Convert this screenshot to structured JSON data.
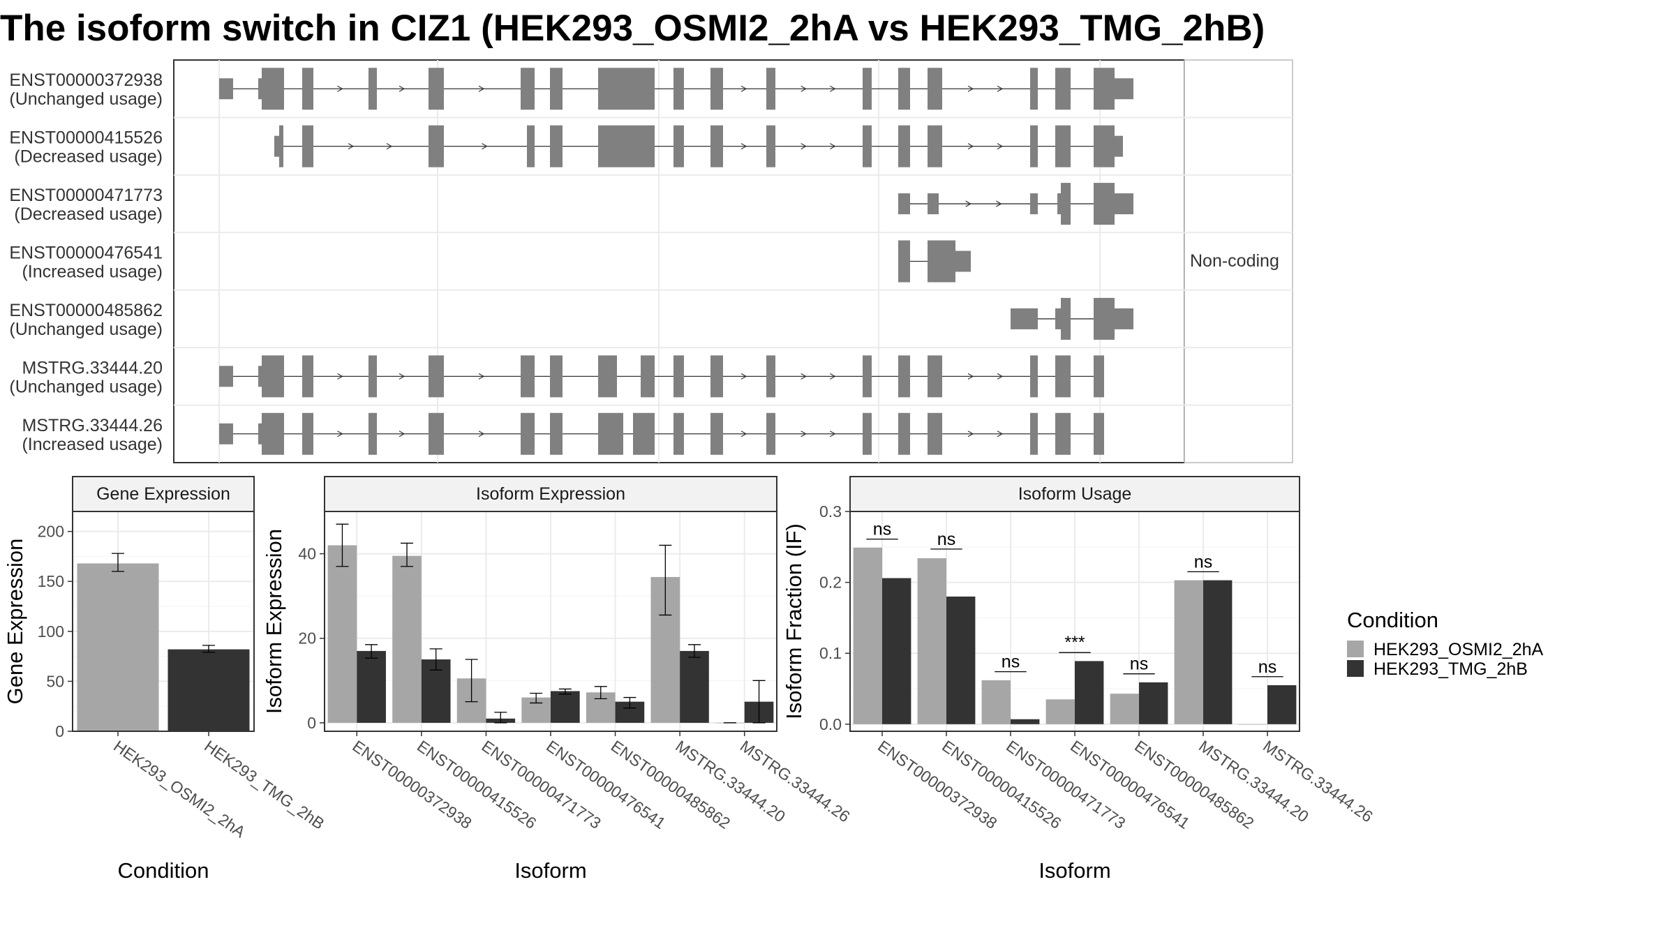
{
  "chart_data": [
    {
      "type": "structure",
      "title": "The isoform switch in CIZ1 (HEK293_OSMI2_2hA vs HEK293_TMG_2hB)",
      "facet_label": "Non-coding",
      "feature_color": "#808080",
      "transcripts": [
        {
          "id": "ENST00000372938",
          "usage": "(Unchanged usage)",
          "coding": true
        },
        {
          "id": "ENST00000415526",
          "usage": "(Decreased usage)",
          "coding": true
        },
        {
          "id": "ENST00000471773",
          "usage": "(Decreased usage)",
          "coding": true
        },
        {
          "id": "ENST00000476541",
          "usage": "(Increased usage)",
          "coding": false
        },
        {
          "id": "ENST00000485862",
          "usage": "(Unchanged usage)",
          "coding": false
        },
        {
          "id": "MSTRG.33444.20",
          "usage": "(Unchanged usage)",
          "coding": true
        },
        {
          "id": "MSTRG.33444.26",
          "usage": "(Increased usage)",
          "coding": true
        }
      ]
    },
    {
      "type": "bar",
      "title": "Gene Expression",
      "xlabel": "Condition",
      "ylabel": "Gene Expression",
      "ylim": [
        0,
        220
      ],
      "yticks": [
        0,
        50,
        100,
        150,
        200
      ],
      "categories": [
        "HEK293_OSMI2_2hA",
        "HEK293_TMG_2hB"
      ],
      "values": [
        168,
        82
      ],
      "errors": [
        [
          160,
          178
        ],
        [
          79,
          86
        ]
      ],
      "colors": [
        "#a6a6a6",
        "#333333"
      ]
    },
    {
      "type": "bar",
      "title": "Isoform Expression",
      "xlabel": "Isoform",
      "ylabel": "Isoform Expression",
      "ylim": [
        -2,
        50
      ],
      "yticks": [
        0,
        20,
        40
      ],
      "categories": [
        "ENST00000372938",
        "ENST00000415526",
        "ENST00000471773",
        "ENST00000476541",
        "ENST00000485862",
        "MSTRG.33444.20",
        "MSTRG.33444.26"
      ],
      "series": [
        {
          "name": "HEK293_OSMI2_2hA",
          "values": [
            42,
            39.5,
            10.5,
            6,
            7.2,
            34.5,
            0
          ],
          "errors": [
            [
              37,
              47
            ],
            [
              37,
              42.5
            ],
            [
              5,
              15
            ],
            [
              4.7,
              7
            ],
            [
              5.7,
              8.6
            ],
            [
              25.5,
              42
            ],
            [
              0,
              0
            ]
          ],
          "color": "#a6a6a6"
        },
        {
          "name": "HEK293_TMG_2hB",
          "values": [
            17,
            15,
            1,
            7.5,
            5,
            17,
            5
          ],
          "errors": [
            [
              15.3,
              18.5
            ],
            [
              12.5,
              17.5
            ],
            [
              0,
              2.5
            ],
            [
              6.8,
              8
            ],
            [
              3.5,
              6
            ],
            [
              15.5,
              18.5
            ],
            [
              0,
              10
            ]
          ],
          "color": "#333333"
        }
      ]
    },
    {
      "type": "bar",
      "title": "Isoform Usage",
      "xlabel": "Isoform",
      "ylabel": "Isoform Fraction (IF)",
      "ylim": [
        -0.01,
        0.3
      ],
      "yticks": [
        "0.0",
        "0.1",
        "0.2",
        "0.3"
      ],
      "categories": [
        "ENST00000372938",
        "ENST00000415526",
        "ENST00000471773",
        "ENST00000476541",
        "ENST00000485862",
        "MSTRG.33444.20",
        "MSTRG.33444.26"
      ],
      "series": [
        {
          "name": "HEK293_OSMI2_2hA",
          "values": [
            0.249,
            0.234,
            0.062,
            0.035,
            0.043,
            0.203,
            0
          ],
          "color": "#a6a6a6"
        },
        {
          "name": "HEK293_TMG_2hB",
          "values": [
            0.206,
            0.18,
            0.007,
            0.089,
            0.059,
            0.203,
            0.055
          ],
          "color": "#333333"
        }
      ],
      "significance": [
        "ns",
        "ns",
        "ns",
        "***",
        "ns",
        "ns",
        "ns"
      ],
      "significance_line_y": [
        0.261,
        0.247,
        0.074,
        0.101,
        0.071,
        0.215,
        0.067
      ]
    }
  ],
  "legend": {
    "title": "Condition",
    "entries": [
      {
        "label": "HEK293_OSMI2_2hA",
        "color": "#a6a6a6"
      },
      {
        "label": "HEK293_TMG_2hB",
        "color": "#333333"
      }
    ]
  }
}
